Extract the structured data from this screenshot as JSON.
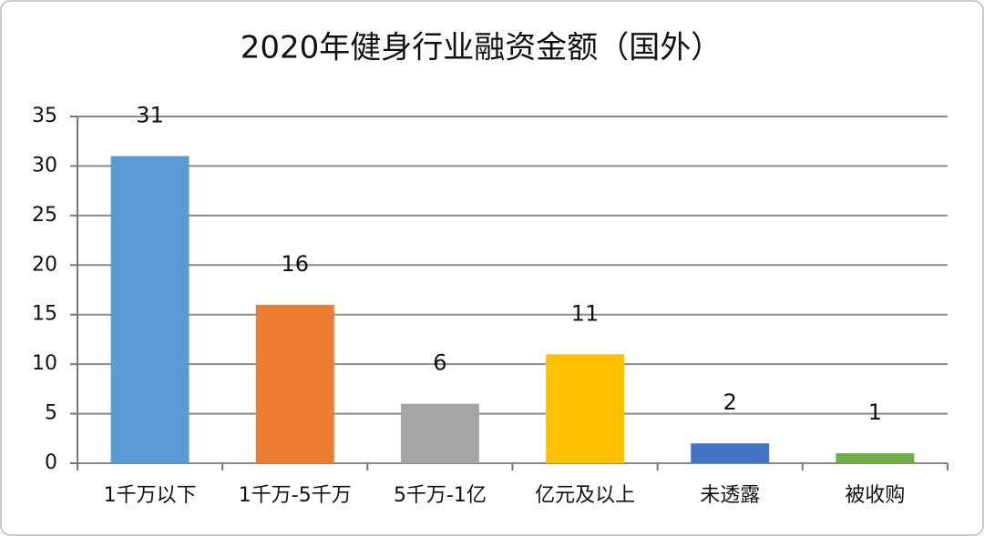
{
  "chart_data": {
    "type": "bar",
    "title": "2020年健身行业融资金额（国外）",
    "categories": [
      "1千万以下",
      "1千万-5千万",
      "5千万-1亿",
      "亿元及以上",
      "未透露",
      "被收购"
    ],
    "values": [
      31,
      16,
      6,
      11,
      2,
      1
    ],
    "colors": [
      "#5b9bd5",
      "#ed7d31",
      "#a5a5a5",
      "#ffc000",
      "#4472c4",
      "#70ad47"
    ],
    "ylim": [
      0,
      35
    ],
    "yticks": [
      0,
      5,
      10,
      15,
      20,
      25,
      30,
      35
    ],
    "grid": true
  }
}
